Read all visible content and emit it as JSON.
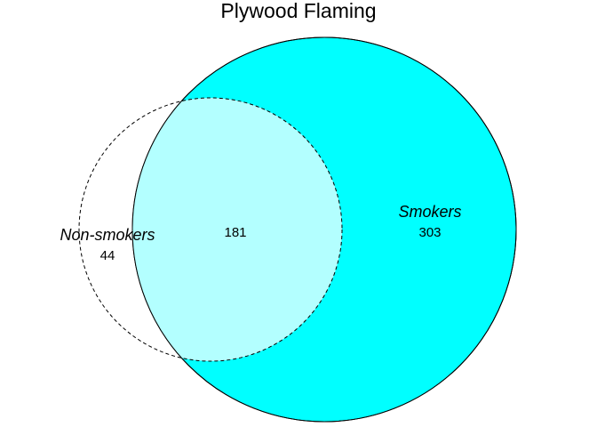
{
  "title": "Plywood Flaming",
  "sets": [
    {
      "name": "Non-smokers",
      "only_count": "44",
      "fill": "none",
      "stroke": "#000000",
      "line_style": "dashed"
    },
    {
      "name": "Smokers",
      "only_count": "303",
      "fill": "#00ffff",
      "stroke": "#000000",
      "line_style": "solid"
    }
  ],
  "intersection": {
    "count": "181",
    "fill": "#b3ffff"
  },
  "chart_data": {
    "type": "venn",
    "title": "Plywood Flaming",
    "sets": [
      "Non-smokers",
      "Smokers"
    ],
    "values": {
      "Non-smokers only": 44,
      "Smokers only": 303,
      "Non-smokers & Smokers": 181
    }
  }
}
